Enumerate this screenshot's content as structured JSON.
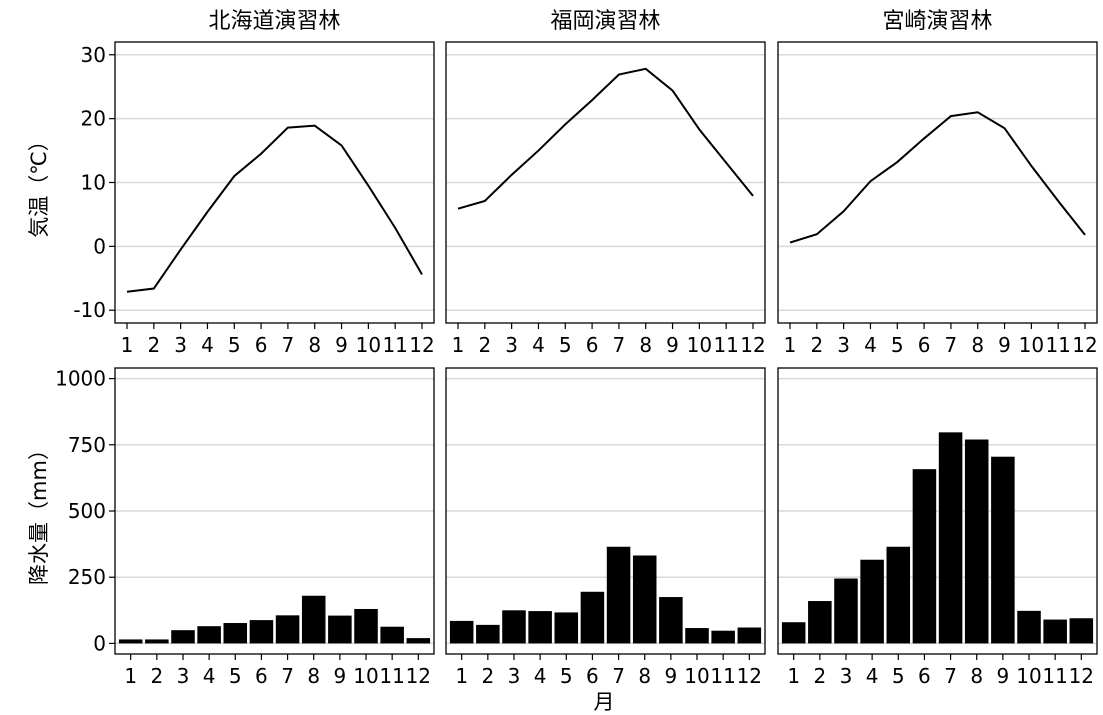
{
  "chart_data": [
    {
      "type": "line",
      "title": "",
      "xlabel": "",
      "ylabel": "気温（℃）",
      "ylim": [
        -12,
        32
      ],
      "yticks": [
        -10,
        0,
        10,
        20,
        30
      ],
      "categories": [
        "1",
        "2",
        "3",
        "4",
        "5",
        "6",
        "7",
        "8",
        "9",
        "10",
        "11",
        "12"
      ],
      "series": [
        {
          "name": "北海道演習林",
          "values": [
            -7.1,
            -6.6,
            -0.5,
            5.4,
            11.0,
            14.5,
            18.6,
            18.9,
            15.8,
            9.5,
            2.9,
            -4.4
          ]
        },
        {
          "name": "福岡演習林",
          "values": [
            5.9,
            7.1,
            11.2,
            15.0,
            19.1,
            22.9,
            26.9,
            27.8,
            24.4,
            18.3,
            13.1,
            7.9
          ]
        },
        {
          "name": "宮崎演習林",
          "values": [
            0.6,
            1.9,
            5.5,
            10.2,
            13.2,
            16.9,
            20.4,
            21.0,
            18.5,
            12.6,
            7.1,
            1.8
          ]
        }
      ],
      "grid": true,
      "legend": "none"
    },
    {
      "type": "bar",
      "title": "",
      "xlabel": "月",
      "ylabel": "降水量（mm）",
      "ylim": [
        -40,
        1040
      ],
      "yticks": [
        0,
        250,
        500,
        750,
        1000
      ],
      "categories": [
        "1",
        "2",
        "3",
        "4",
        "5",
        "6",
        "7",
        "8",
        "9",
        "10",
        "11",
        "12"
      ],
      "series": [
        {
          "name": "北海道演習林",
          "values": [
            15,
            15,
            50,
            65,
            77,
            88,
            106,
            180,
            105,
            130,
            63,
            20
          ]
        },
        {
          "name": "福岡演習林",
          "values": [
            85,
            70,
            125,
            122,
            117,
            195,
            365,
            332,
            175,
            58,
            48,
            60
          ]
        },
        {
          "name": "宮崎演習林",
          "values": [
            80,
            160,
            245,
            316,
            365,
            658,
            797,
            770,
            705,
            123,
            90,
            95
          ]
        }
      ],
      "grid": true,
      "legend": "none"
    }
  ]
}
